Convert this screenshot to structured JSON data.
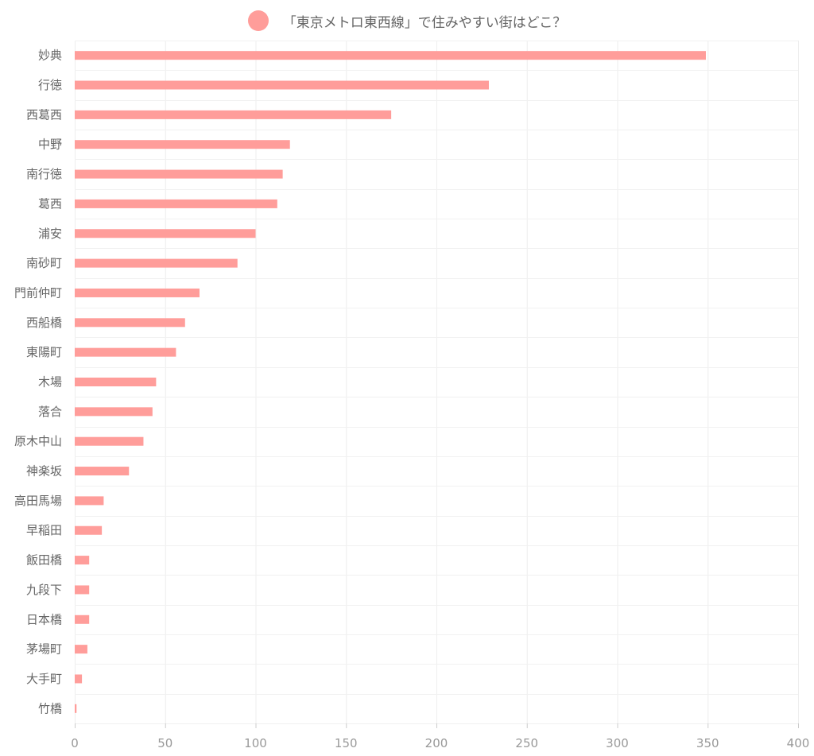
{
  "chart_data": {
    "type": "bar",
    "orientation": "horizontal",
    "title": "",
    "xlabel": "",
    "ylabel": "",
    "xlim": [
      0,
      400
    ],
    "x_ticks": [
      0,
      50,
      100,
      150,
      200,
      250,
      300,
      350,
      400
    ],
    "grid": true,
    "legend_position": "top",
    "categories": [
      "妙典",
      "行徳",
      "西葛西",
      "中野",
      "南行徳",
      "葛西",
      "浦安",
      "南砂町",
      "門前仲町",
      "西船橋",
      "東陽町",
      "木場",
      "落合",
      "原木中山",
      "神楽坂",
      "高田馬場",
      "早稲田",
      "飯田橋",
      "九段下",
      "日本橋",
      "茅場町",
      "大手町",
      "竹橋"
    ],
    "series": [
      {
        "name": "「東京メトロ東西線」で住みやすい街はどこ？",
        "color": "#ff9d9a",
        "values": [
          349,
          229,
          175,
          119,
          115,
          112,
          100,
          90,
          69,
          61,
          56,
          45,
          43,
          38,
          30,
          16,
          15,
          8,
          8,
          8,
          7,
          4,
          1
        ]
      }
    ]
  }
}
